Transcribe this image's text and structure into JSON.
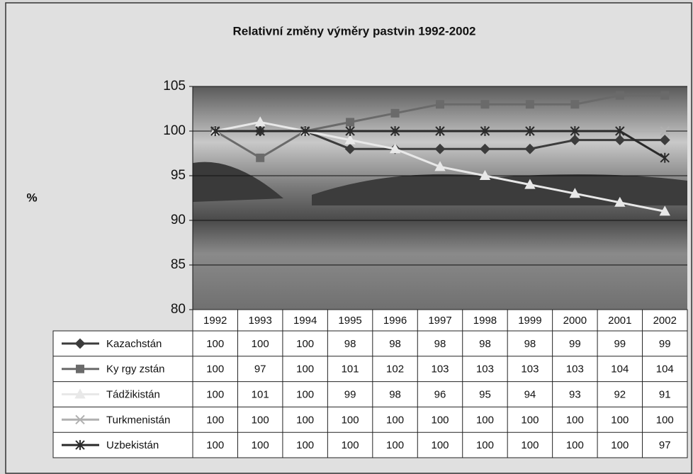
{
  "chart_data": {
    "type": "line",
    "title": "Relativní změny výměry pastvin 1992-2002",
    "y_label": "%",
    "categories": [
      "1992",
      "1993",
      "1994",
      "1995",
      "1996",
      "1997",
      "1998",
      "1999",
      "2000",
      "2001",
      "2002"
    ],
    "ylim": [
      80,
      105
    ],
    "yticks": [
      80,
      85,
      90,
      95,
      100,
      105
    ],
    "grid": true,
    "series": [
      {
        "name": "Kazachstán",
        "color": "#3c3c3c",
        "marker": "diamond",
        "values": [
          100,
          100,
          100,
          98,
          98,
          98,
          98,
          98,
          99,
          99,
          99
        ]
      },
      {
        "name": "Ky rgy zstán",
        "color": "#6a6a6a",
        "marker": "square",
        "values": [
          100,
          97,
          100,
          101,
          102,
          103,
          103,
          103,
          103,
          104,
          104
        ]
      },
      {
        "name": "Tádžikistán",
        "color": "#e8e8e8",
        "marker": "triangle",
        "values": [
          100,
          101,
          100,
          99,
          98,
          96,
          95,
          94,
          93,
          92,
          91
        ]
      },
      {
        "name": "Turkmenistán",
        "color": "#b0b0b0",
        "marker": "x",
        "values": [
          100,
          100,
          100,
          100,
          100,
          100,
          100,
          100,
          100,
          100,
          100
        ]
      },
      {
        "name": "Uzbekistán",
        "color": "#2a2a2a",
        "marker": "star",
        "values": [
          100,
          100,
          100,
          100,
          100,
          100,
          100,
          100,
          100,
          100,
          97
        ]
      }
    ]
  }
}
